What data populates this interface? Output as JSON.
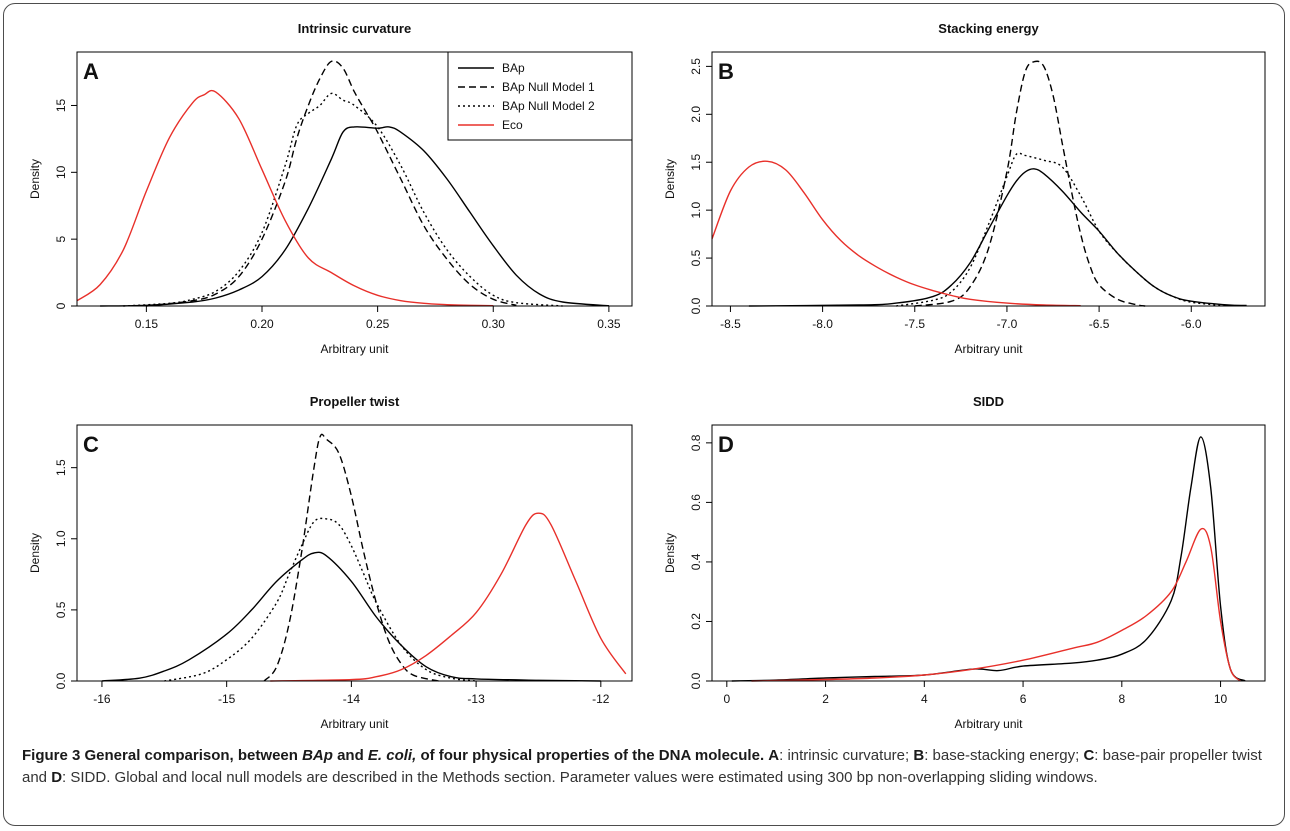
{
  "colors": {
    "bap": "#000000",
    "eco": "#e8302a"
  },
  "legend": [
    "BAp",
    "BAp Null Model 1",
    "BAp Null Model 2",
    "Eco"
  ],
  "chart_data": [
    {
      "type": "line",
      "panel": "A",
      "title": "Intrinsic curvature",
      "xlabel": "Arbitrary unit",
      "ylabel": "Density",
      "xlim": [
        0.12,
        0.36
      ],
      "ylim": [
        0,
        19
      ],
      "xticks": [
        0.15,
        0.2,
        0.25,
        0.3,
        0.35
      ],
      "xtick_labels": [
        "0.15",
        "0.20",
        "0.25",
        "0.30",
        "0.35"
      ],
      "yticks": [
        0,
        5,
        10,
        15
      ],
      "ytick_labels": [
        "0",
        "5",
        "10",
        "15"
      ],
      "legend": true,
      "series": [
        {
          "name": "BAp",
          "style": "solid",
          "color": "bap",
          "x": [
            0.13,
            0.15,
            0.17,
            0.18,
            0.19,
            0.2,
            0.21,
            0.22,
            0.23,
            0.235,
            0.24,
            0.25,
            0.255,
            0.26,
            0.27,
            0.28,
            0.29,
            0.3,
            0.31,
            0.32,
            0.33,
            0.35
          ],
          "y": [
            0,
            0.05,
            0.3,
            0.6,
            1.2,
            2.2,
            4.2,
            7.3,
            11.0,
            13.0,
            13.4,
            13.3,
            13.4,
            13.0,
            11.6,
            9.5,
            7.0,
            4.5,
            2.3,
            0.9,
            0.3,
            0.02
          ]
        },
        {
          "name": "BAp Null Model 1",
          "style": "dashed",
          "color": "bap",
          "x": [
            0.15,
            0.17,
            0.18,
            0.19,
            0.2,
            0.21,
            0.215,
            0.22,
            0.225,
            0.23,
            0.235,
            0.24,
            0.245,
            0.25,
            0.26,
            0.27,
            0.28,
            0.29,
            0.3,
            0.31
          ],
          "y": [
            0,
            0.4,
            0.9,
            2.2,
            5.0,
            9.3,
            12.5,
            15.0,
            17.0,
            18.3,
            17.8,
            16.0,
            14.5,
            13.0,
            9.5,
            6.0,
            3.5,
            1.6,
            0.5,
            0.05
          ]
        },
        {
          "name": "BAp Null Model 2",
          "style": "dotted",
          "color": "bap",
          "x": [
            0.14,
            0.16,
            0.17,
            0.18,
            0.19,
            0.2,
            0.21,
            0.215,
            0.22,
            0.225,
            0.23,
            0.235,
            0.24,
            0.25,
            0.26,
            0.27,
            0.28,
            0.29,
            0.3,
            0.31,
            0.33
          ],
          "y": [
            0,
            0.2,
            0.5,
            1.1,
            2.6,
            5.5,
            10.5,
            13.5,
            14.4,
            15.0,
            15.9,
            15.4,
            15.0,
            13.4,
            10.5,
            7.0,
            4.2,
            2.2,
            0.8,
            0.25,
            0
          ]
        },
        {
          "name": "Eco",
          "style": "solid",
          "color": "eco",
          "x": [
            0.12,
            0.13,
            0.14,
            0.15,
            0.16,
            0.17,
            0.175,
            0.18,
            0.19,
            0.2,
            0.21,
            0.22,
            0.23,
            0.24,
            0.25,
            0.26,
            0.27,
            0.28,
            0.29,
            0.3
          ],
          "y": [
            0.4,
            1.6,
            4.2,
            8.6,
            12.6,
            15.2,
            15.8,
            16.0,
            14.0,
            10.2,
            6.4,
            3.6,
            2.5,
            1.5,
            0.8,
            0.4,
            0.2,
            0.1,
            0.05,
            0.02
          ]
        }
      ]
    },
    {
      "type": "line",
      "panel": "B",
      "title": "Stacking energy",
      "xlabel": "Arbitrary unit",
      "ylabel": "Density",
      "xlim": [
        -8.6,
        -5.6
      ],
      "ylim": [
        0,
        2.65
      ],
      "xticks": [
        -8.5,
        -8.0,
        -7.5,
        -7.0,
        -6.5,
        -6.0
      ],
      "xtick_labels": [
        "-8.5",
        "-8.0",
        "-7.5",
        "-7.0",
        "-6.5",
        "-6.0"
      ],
      "yticks": [
        0,
        0.5,
        1.0,
        1.5,
        2.0,
        2.5
      ],
      "ytick_labels": [
        "0.0",
        "0.5",
        "1.0",
        "1.5",
        "2.0",
        "2.5"
      ],
      "series": [
        {
          "name": "BAp",
          "style": "solid",
          "color": "bap",
          "x": [
            -8.4,
            -7.8,
            -7.6,
            -7.4,
            -7.3,
            -7.2,
            -7.1,
            -7.0,
            -6.95,
            -6.9,
            -6.85,
            -6.8,
            -6.7,
            -6.6,
            -6.5,
            -6.4,
            -6.3,
            -6.2,
            -6.1,
            -6.0,
            -5.8,
            -5.7
          ],
          "y": [
            0,
            0.01,
            0.03,
            0.1,
            0.22,
            0.45,
            0.8,
            1.15,
            1.3,
            1.4,
            1.43,
            1.38,
            1.2,
            0.98,
            0.78,
            0.55,
            0.36,
            0.2,
            0.1,
            0.05,
            0.01,
            0.005
          ]
        },
        {
          "name": "BAp Null Model 1",
          "style": "dashed",
          "color": "bap",
          "x": [
            -7.5,
            -7.3,
            -7.2,
            -7.1,
            -7.0,
            -6.95,
            -6.9,
            -6.85,
            -6.8,
            -6.75,
            -6.7,
            -6.65,
            -6.6,
            -6.55,
            -6.5,
            -6.4,
            -6.3,
            -6.25
          ],
          "y": [
            0,
            0.05,
            0.2,
            0.6,
            1.4,
            2.0,
            2.45,
            2.55,
            2.5,
            2.2,
            1.7,
            1.2,
            0.75,
            0.42,
            0.22,
            0.07,
            0.015,
            0
          ]
        },
        {
          "name": "BAp Null Model 2",
          "style": "dotted",
          "color": "bap",
          "x": [
            -7.6,
            -7.4,
            -7.3,
            -7.2,
            -7.1,
            -7.0,
            -6.95,
            -6.9,
            -6.8,
            -6.7,
            -6.6,
            -6.5,
            -6.4,
            -6.3,
            -6.2,
            -6.1,
            -6.0,
            -5.8
          ],
          "y": [
            0,
            0.06,
            0.15,
            0.4,
            0.85,
            1.35,
            1.58,
            1.57,
            1.52,
            1.45,
            1.15,
            0.78,
            0.55,
            0.36,
            0.2,
            0.1,
            0.04,
            0
          ]
        },
        {
          "name": "Eco",
          "style": "solid",
          "color": "eco",
          "x": [
            -8.6,
            -8.5,
            -8.4,
            -8.3,
            -8.2,
            -8.1,
            -8.0,
            -7.9,
            -7.8,
            -7.7,
            -7.6,
            -7.5,
            -7.4,
            -7.3,
            -7.2,
            -7.0,
            -6.8,
            -6.6
          ],
          "y": [
            0.7,
            1.2,
            1.45,
            1.51,
            1.42,
            1.18,
            0.9,
            0.68,
            0.52,
            0.4,
            0.3,
            0.22,
            0.16,
            0.11,
            0.07,
            0.03,
            0.01,
            0.003
          ]
        }
      ]
    },
    {
      "type": "line",
      "panel": "C",
      "title": "Propeller twist",
      "xlabel": "Arbitrary unit",
      "ylabel": "Density",
      "xlim": [
        -16.2,
        -11.75
      ],
      "ylim": [
        0,
        1.8
      ],
      "xticks": [
        -16,
        -15,
        -14,
        -13,
        -12
      ],
      "xtick_labels": [
        "-16",
        "-15",
        "-14",
        "-13",
        "-12"
      ],
      "yticks": [
        0,
        0.5,
        1.0,
        1.5
      ],
      "ytick_labels": [
        "0.0",
        "0.5",
        "1.0",
        "1.5"
      ],
      "series": [
        {
          "name": "BAp",
          "style": "solid",
          "color": "bap",
          "x": [
            -16.0,
            -15.7,
            -15.5,
            -15.3,
            -15.0,
            -14.8,
            -14.6,
            -14.4,
            -14.3,
            -14.2,
            -14.0,
            -13.8,
            -13.6,
            -13.4,
            -13.2,
            -13.0,
            -12.5,
            -12.0
          ],
          "y": [
            0,
            0.02,
            0.07,
            0.15,
            0.33,
            0.5,
            0.7,
            0.85,
            0.9,
            0.88,
            0.7,
            0.45,
            0.25,
            0.1,
            0.03,
            0.015,
            0.005,
            0
          ]
        },
        {
          "name": "BAp Null Model 1",
          "style": "dashed",
          "color": "bap",
          "x": [
            -14.7,
            -14.6,
            -14.5,
            -14.4,
            -14.3,
            -14.25,
            -14.2,
            -14.1,
            -14.0,
            -13.9,
            -13.8,
            -13.7,
            -13.6,
            -13.5,
            -13.3
          ],
          "y": [
            0,
            0.1,
            0.4,
            0.9,
            1.5,
            1.72,
            1.7,
            1.6,
            1.3,
            0.9,
            0.55,
            0.28,
            0.12,
            0.04,
            0
          ]
        },
        {
          "name": "BAp Null Model 2",
          "style": "dotted",
          "color": "bap",
          "x": [
            -15.5,
            -15.2,
            -15.0,
            -14.8,
            -14.6,
            -14.5,
            -14.4,
            -14.3,
            -14.2,
            -14.1,
            -14.0,
            -13.9,
            -13.8,
            -13.6,
            -13.4,
            -13.2,
            -13.0
          ],
          "y": [
            0,
            0.05,
            0.15,
            0.3,
            0.55,
            0.75,
            0.95,
            1.12,
            1.14,
            1.1,
            0.95,
            0.75,
            0.55,
            0.25,
            0.08,
            0.02,
            0
          ]
        },
        {
          "name": "Eco",
          "style": "solid",
          "color": "eco",
          "x": [
            -14.65,
            -14.0,
            -13.8,
            -13.6,
            -13.4,
            -13.2,
            -13.0,
            -12.8,
            -12.6,
            -12.5,
            -12.4,
            -12.2,
            -12.0,
            -11.8
          ],
          "y": [
            0,
            0.01,
            0.03,
            0.08,
            0.18,
            0.32,
            0.48,
            0.75,
            1.1,
            1.18,
            1.1,
            0.7,
            0.3,
            0.05
          ]
        }
      ]
    },
    {
      "type": "line",
      "panel": "D",
      "title": "SIDD",
      "xlabel": "Arbitrary unit",
      "ylabel": "Density",
      "xlim": [
        -0.3,
        10.9
      ],
      "ylim": [
        0,
        0.86
      ],
      "xticks": [
        0,
        2,
        4,
        6,
        8,
        10
      ],
      "xtick_labels": [
        "0",
        "2",
        "4",
        "6",
        "8",
        "10"
      ],
      "yticks": [
        0,
        0.2,
        0.4,
        0.6,
        0.8
      ],
      "ytick_labels": [
        "0.0",
        "0.2",
        "0.4",
        "0.6",
        "0.8"
      ],
      "series": [
        {
          "name": "BAp",
          "style": "solid",
          "color": "bap",
          "x": [
            0.1,
            1.0,
            2.0,
            3.0,
            4.0,
            5.0,
            5.5,
            6.0,
            7.0,
            7.5,
            8.0,
            8.5,
            9.0,
            9.2,
            9.4,
            9.6,
            9.8,
            10.0,
            10.2,
            10.5
          ],
          "y": [
            0,
            0.003,
            0.01,
            0.015,
            0.02,
            0.04,
            0.035,
            0.05,
            0.06,
            0.07,
            0.09,
            0.14,
            0.27,
            0.42,
            0.65,
            0.82,
            0.65,
            0.25,
            0.04,
            0
          ]
        },
        {
          "name": "Eco",
          "style": "solid",
          "color": "eco",
          "x": [
            0.5,
            2.0,
            3.0,
            4.0,
            5.0,
            6.0,
            7.0,
            7.5,
            8.0,
            8.5,
            9.0,
            9.3,
            9.6,
            9.8,
            10.0,
            10.2,
            10.4
          ],
          "y": [
            0,
            0.005,
            0.01,
            0.02,
            0.04,
            0.07,
            0.11,
            0.13,
            0.17,
            0.22,
            0.3,
            0.4,
            0.51,
            0.45,
            0.2,
            0.04,
            0
          ]
        }
      ]
    }
  ],
  "caption": {
    "bold_pre": "Figure 3 General comparison, between ",
    "bold_italic_1": "BAp",
    "bold_mid": " and ",
    "bold_italic_2": "E. coli,",
    "bold_post": " of four physical properties of the DNA molecule.",
    "a_key": "A",
    "a_text": ": intrinsic curvature; ",
    "b_key": "B",
    "b_text": ": base-stacking energy; ",
    "c_key": "C",
    "c_text": ": base-pair propeller twist and ",
    "d_key": "D",
    "d_text": ": SIDD. Global and local null models are described in the Methods section. Parameter values were estimated using 300 bp non-overlapping sliding windows."
  }
}
